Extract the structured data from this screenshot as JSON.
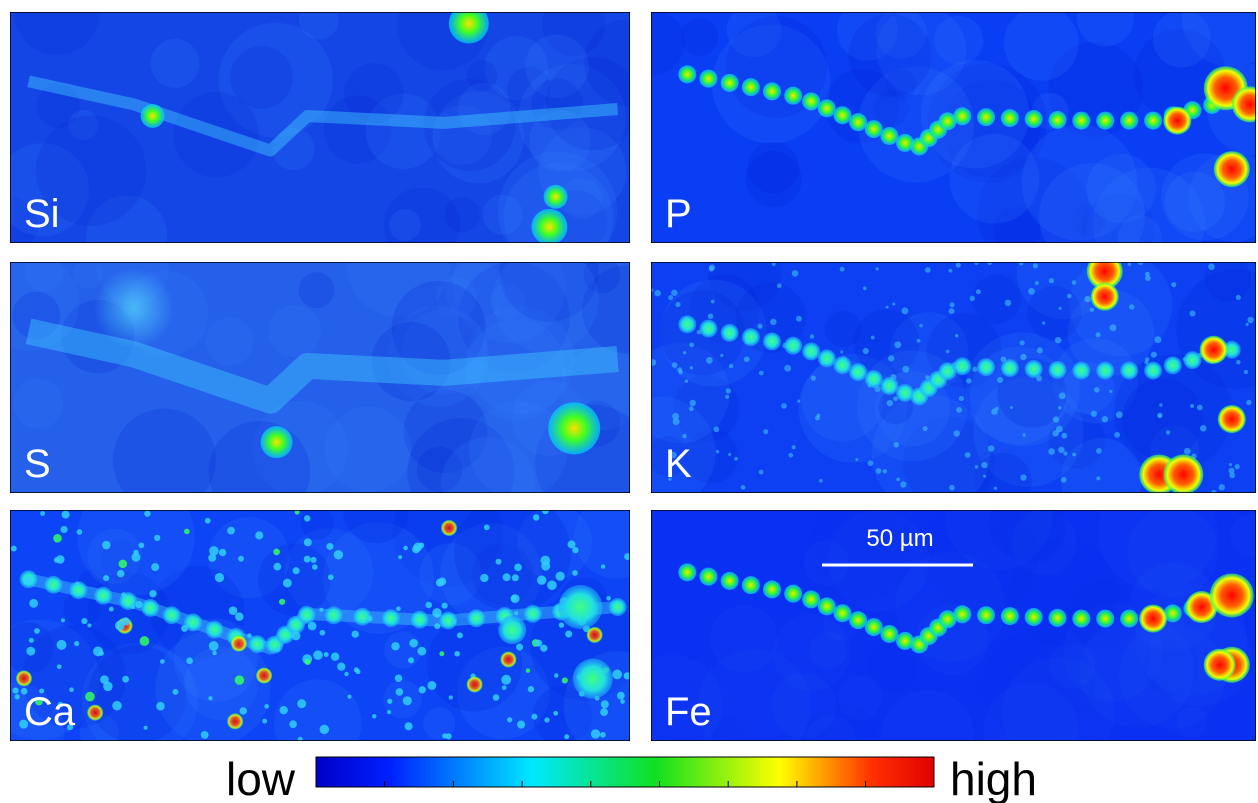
{
  "panels": [
    {
      "label": "Si"
    },
    {
      "label": "P"
    },
    {
      "label": "S"
    },
    {
      "label": "K"
    },
    {
      "label": "Ca"
    },
    {
      "label": "Fe"
    }
  ],
  "scale_bar": {
    "label": "50 µm"
  },
  "colorbar": {
    "low_label": "low",
    "high_label": "high"
  }
}
